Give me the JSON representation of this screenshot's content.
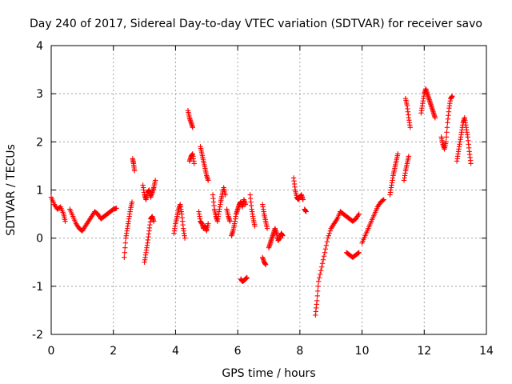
{
  "chart_data": {
    "type": "scatter",
    "title": "Day 240 of 2017, Sidereal Day-to-day VTEC variation (SDTVAR) for receiver savo",
    "xlabel": "GPS time / hours",
    "ylabel": "SDTVAR / TECUs",
    "xlim": [
      0,
      14
    ],
    "ylim": [
      -2,
      4
    ],
    "xticks": [
      0,
      2,
      4,
      6,
      8,
      10,
      12,
      14
    ],
    "yticks": [
      -2,
      -1,
      0,
      1,
      2,
      3,
      4
    ],
    "xtick_labels": [
      "0",
      "2",
      "4",
      "6",
      "8",
      "10",
      "12",
      "14"
    ],
    "ytick_labels": [
      "-2",
      "-1",
      "0",
      "1",
      "2",
      "3",
      "4"
    ],
    "grid": true,
    "marker": "+",
    "color": "#ff0000",
    "series": [
      {
        "name": "savo",
        "segments": [
          [
            [
              0.0,
              0.85
            ],
            [
              0.1,
              0.7
            ],
            [
              0.2,
              0.6
            ],
            [
              0.3,
              0.65
            ],
            [
              0.4,
              0.5
            ],
            [
              0.45,
              0.35
            ]
          ],
          [
            [
              0.6,
              0.6
            ],
            [
              0.7,
              0.45
            ],
            [
              0.8,
              0.3
            ],
            [
              0.9,
              0.2
            ],
            [
              1.0,
              0.15
            ],
            [
              1.1,
              0.25
            ],
            [
              1.2,
              0.35
            ],
            [
              1.3,
              0.45
            ],
            [
              1.4,
              0.55
            ],
            [
              1.5,
              0.5
            ],
            [
              1.6,
              0.4
            ],
            [
              1.7,
              0.45
            ],
            [
              1.8,
              0.5
            ],
            [
              1.9,
              0.55
            ],
            [
              2.0,
              0.6
            ],
            [
              2.1,
              0.62
            ]
          ],
          [
            [
              2.35,
              -0.4
            ],
            [
              2.4,
              0.0
            ],
            [
              2.45,
              0.2
            ],
            [
              2.5,
              0.4
            ],
            [
              2.55,
              0.6
            ],
            [
              2.6,
              0.75
            ]
          ],
          [
            [
              2.62,
              1.65
            ],
            [
              2.65,
              1.55
            ],
            [
              2.68,
              1.4
            ]
          ],
          [
            [
              3.0,
              -0.5
            ],
            [
              3.05,
              -0.3
            ],
            [
              3.1,
              -0.1
            ],
            [
              3.15,
              0.15
            ],
            [
              3.2,
              0.4
            ],
            [
              3.25,
              0.45
            ],
            [
              3.3,
              0.35
            ]
          ],
          [
            [
              2.95,
              1.1
            ],
            [
              3.0,
              0.9
            ],
            [
              3.05,
              0.8
            ],
            [
              3.1,
              0.95
            ],
            [
              3.15,
              1.0
            ],
            [
              3.2,
              0.85
            ],
            [
              3.25,
              0.95
            ],
            [
              3.3,
              1.05
            ],
            [
              3.35,
              1.2
            ]
          ],
          [
            [
              3.95,
              0.1
            ],
            [
              4.0,
              0.3
            ],
            [
              4.05,
              0.45
            ],
            [
              4.1,
              0.6
            ],
            [
              4.15,
              0.7
            ],
            [
              4.2,
              0.5
            ],
            [
              4.25,
              0.2
            ],
            [
              4.3,
              0.0
            ]
          ],
          [
            [
              4.4,
              2.65
            ],
            [
              4.45,
              2.5
            ],
            [
              4.5,
              2.4
            ],
            [
              4.55,
              2.3
            ]
          ],
          [
            [
              4.45,
              1.6
            ],
            [
              4.5,
              1.7
            ],
            [
              4.55,
              1.75
            ],
            [
              4.6,
              1.55
            ]
          ],
          [
            [
              4.75,
              0.55
            ],
            [
              4.8,
              0.35
            ],
            [
              4.85,
              0.3
            ],
            [
              4.9,
              0.2
            ],
            [
              4.95,
              0.25
            ],
            [
              5.0,
              0.15
            ],
            [
              5.05,
              0.3
            ]
          ],
          [
            [
              4.8,
              1.9
            ],
            [
              4.85,
              1.75
            ],
            [
              4.9,
              1.6
            ],
            [
              4.95,
              1.45
            ],
            [
              5.0,
              1.3
            ],
            [
              5.05,
              1.2
            ]
          ],
          [
            [
              5.2,
              0.9
            ],
            [
              5.25,
              0.6
            ],
            [
              5.3,
              0.45
            ],
            [
              5.35,
              0.35
            ],
            [
              5.4,
              0.55
            ],
            [
              5.45,
              0.75
            ],
            [
              5.5,
              0.9
            ],
            [
              5.55,
              1.05
            ],
            [
              5.6,
              0.9
            ]
          ],
          [
            [
              5.65,
              0.6
            ],
            [
              5.7,
              0.45
            ],
            [
              5.75,
              0.35
            ]
          ],
          [
            [
              5.8,
              0.05
            ],
            [
              5.85,
              0.15
            ],
            [
              5.9,
              0.3
            ],
            [
              5.95,
              0.5
            ],
            [
              6.0,
              0.6
            ],
            [
              6.05,
              0.7
            ],
            [
              6.1,
              0.75
            ],
            [
              6.15,
              0.65
            ],
            [
              6.2,
              0.8
            ],
            [
              6.25,
              0.7
            ]
          ],
          [
            [
              6.1,
              -0.85
            ],
            [
              6.15,
              -0.9
            ],
            [
              6.2,
              -0.88
            ],
            [
              6.25,
              -0.85
            ],
            [
              6.3,
              -0.82
            ]
          ],
          [
            [
              6.4,
              0.9
            ],
            [
              6.45,
              0.6
            ],
            [
              6.5,
              0.4
            ],
            [
              6.55,
              0.25
            ]
          ],
          [
            [
              6.8,
              0.7
            ],
            [
              6.85,
              0.5
            ],
            [
              6.9,
              0.35
            ],
            [
              6.95,
              0.2
            ]
          ],
          [
            [
              6.8,
              -0.4
            ],
            [
              6.85,
              -0.5
            ],
            [
              6.9,
              -0.55
            ]
          ],
          [
            [
              7.0,
              -0.2
            ],
            [
              7.05,
              -0.1
            ],
            [
              7.1,
              0.0
            ],
            [
              7.15,
              0.1
            ],
            [
              7.2,
              0.2
            ],
            [
              7.25,
              0.1
            ],
            [
              7.3,
              -0.05
            ],
            [
              7.35,
              0.0
            ],
            [
              7.4,
              0.1
            ],
            [
              7.45,
              0.05
            ]
          ],
          [
            [
              7.8,
              1.25
            ],
            [
              7.85,
              1.0
            ],
            [
              7.9,
              0.85
            ],
            [
              7.95,
              0.8
            ],
            [
              8.0,
              0.85
            ],
            [
              8.05,
              0.9
            ],
            [
              8.1,
              0.8
            ]
          ],
          [
            [
              8.15,
              0.6
            ],
            [
              8.2,
              0.55
            ]
          ],
          [
            [
              8.5,
              -1.6
            ],
            [
              8.55,
              -1.3
            ],
            [
              8.6,
              -0.9
            ],
            [
              8.7,
              -0.6
            ],
            [
              8.8,
              -0.3
            ],
            [
              8.9,
              0.0
            ],
            [
              9.0,
              0.2
            ],
            [
              9.1,
              0.3
            ],
            [
              9.2,
              0.4
            ],
            [
              9.3,
              0.55
            ]
          ],
          [
            [
              9.3,
              0.55
            ],
            [
              9.4,
              0.5
            ],
            [
              9.5,
              0.45
            ],
            [
              9.6,
              0.4
            ],
            [
              9.7,
              0.35
            ],
            [
              9.8,
              0.4
            ],
            [
              9.9,
              0.5
            ]
          ],
          [
            [
              9.5,
              -0.3
            ],
            [
              9.6,
              -0.35
            ],
            [
              9.7,
              -0.4
            ],
            [
              9.8,
              -0.35
            ],
            [
              9.9,
              -0.3
            ]
          ],
          [
            [
              10.0,
              -0.1
            ],
            [
              10.1,
              0.05
            ],
            [
              10.2,
              0.2
            ],
            [
              10.3,
              0.35
            ],
            [
              10.4,
              0.5
            ],
            [
              10.5,
              0.65
            ],
            [
              10.6,
              0.75
            ],
            [
              10.7,
              0.8
            ]
          ],
          [
            [
              10.9,
              0.9
            ],
            [
              10.95,
              1.1
            ],
            [
              11.0,
              1.3
            ],
            [
              11.05,
              1.45
            ],
            [
              11.1,
              1.6
            ],
            [
              11.15,
              1.75
            ]
          ],
          [
            [
              11.35,
              1.2
            ],
            [
              11.4,
              1.4
            ],
            [
              11.45,
              1.55
            ],
            [
              11.5,
              1.7
            ]
          ],
          [
            [
              11.4,
              2.9
            ],
            [
              11.45,
              2.75
            ],
            [
              11.5,
              2.5
            ],
            [
              11.55,
              2.3
            ]
          ],
          [
            [
              11.9,
              2.6
            ],
            [
              11.95,
              2.8
            ],
            [
              12.0,
              3.0
            ],
            [
              12.05,
              3.1
            ],
            [
              12.1,
              3.0
            ],
            [
              12.15,
              2.9
            ],
            [
              12.2,
              2.8
            ],
            [
              12.25,
              2.7
            ],
            [
              12.3,
              2.6
            ],
            [
              12.35,
              2.5
            ]
          ],
          [
            [
              12.55,
              2.1
            ],
            [
              12.6,
              1.95
            ],
            [
              12.65,
              1.85
            ],
            [
              12.7,
              2.0
            ],
            [
              12.75,
              2.4
            ],
            [
              12.8,
              2.7
            ],
            [
              12.85,
              2.9
            ],
            [
              12.9,
              2.95
            ]
          ],
          [
            [
              13.05,
              1.6
            ],
            [
              13.1,
              1.8
            ],
            [
              13.15,
              2.0
            ],
            [
              13.2,
              2.2
            ],
            [
              13.25,
              2.4
            ],
            [
              13.3,
              2.5
            ],
            [
              13.35,
              2.3
            ],
            [
              13.4,
              2.1
            ],
            [
              13.45,
              1.8
            ],
            [
              13.5,
              1.55
            ]
          ]
        ]
      }
    ]
  }
}
